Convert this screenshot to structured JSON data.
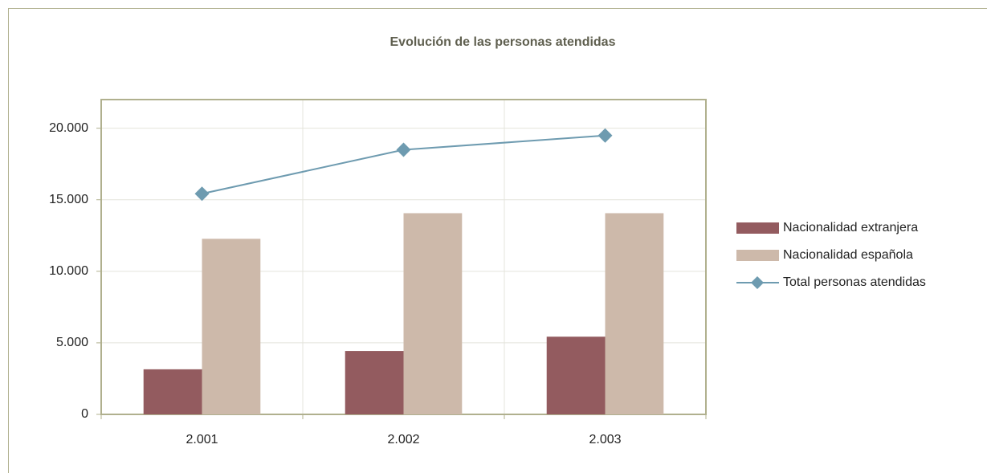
{
  "chart_data": {
    "type": "bar",
    "title": "Evolución de las personas atendidas",
    "categories": [
      "2.001",
      "2.002",
      "2.003"
    ],
    "series": [
      {
        "name": "Nacionalidad extranjera",
        "color": "#935b5f",
        "values": [
          3150,
          4430,
          5430
        ]
      },
      {
        "name": "Nacionalidad española",
        "color": "#cdb9aa",
        "values": [
          12270,
          14060,
          14060
        ]
      },
      {
        "name": "Total personas atendidas",
        "type": "line",
        "color": "#6e9bb0",
        "values": [
          15420,
          18490,
          19490
        ]
      }
    ],
    "ylim": [
      0,
      22000
    ],
    "yticks": [
      0,
      {
        "value": 5000,
        "label": "5.000"
      },
      {
        "value": 10000,
        "label": "10.000"
      },
      {
        "value": 15000,
        "label": "15.000"
      },
      {
        "value": 20000,
        "label": "20.000"
      }
    ],
    "grid": true,
    "legend": "right"
  }
}
